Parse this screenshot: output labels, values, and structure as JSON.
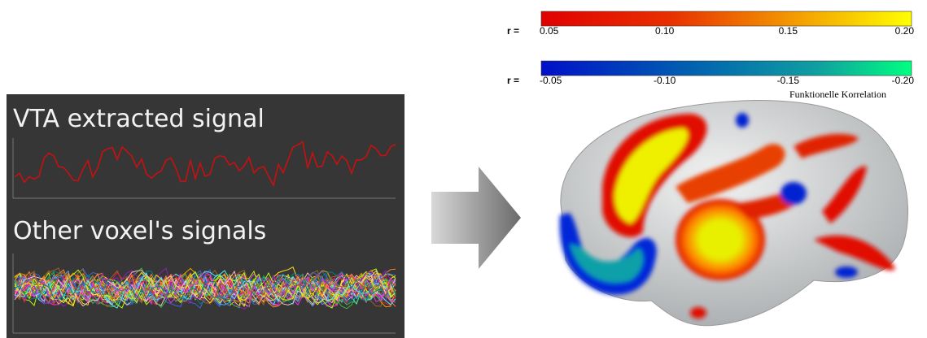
{
  "left_panel": {
    "title_top": "VTA extracted signal",
    "title_bottom": "Other voxel's signals"
  },
  "colorbars": [
    {
      "prefix": "r =",
      "labels": [
        "0.05",
        "0.10",
        "0.15",
        "0.20"
      ]
    },
    {
      "prefix": "r =",
      "labels": [
        "-0.05",
        "-0.10",
        "-0.15",
        "-0.20"
      ]
    }
  ],
  "caption": "Funktionelle Korrelation"
}
